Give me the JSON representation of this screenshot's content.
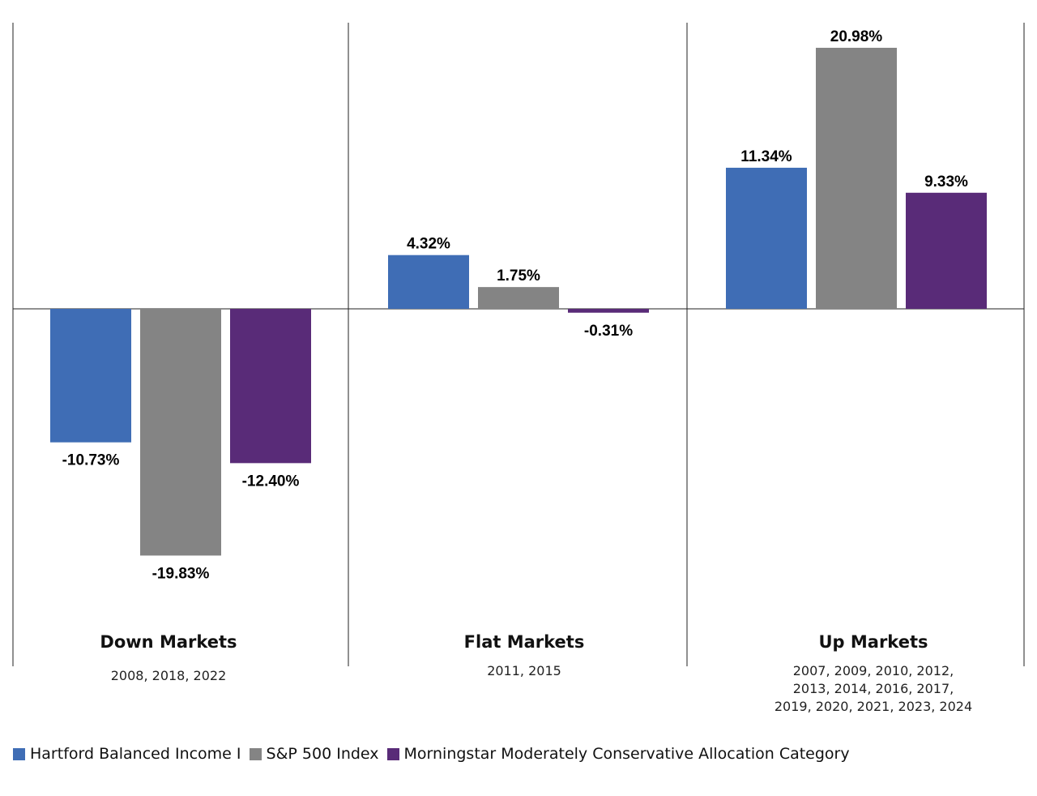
{
  "chart_data": {
    "type": "bar",
    "categories": [
      "Down Markets",
      "Flat Markets",
      "Up Markets"
    ],
    "category_years": [
      "2008, 2018, 2022",
      "2011, 2015",
      "2007, 2009, 2010, 2012,\n2013, 2014, 2016, 2017,\n2019, 2020, 2021, 2023, 2024"
    ],
    "series": [
      {
        "name": "Hartford Balanced Income I",
        "color": "#3f6db5",
        "values": [
          -10.73,
          4.32,
          11.34
        ],
        "labels": [
          "-10.73%",
          "4.32%",
          "11.34%"
        ]
      },
      {
        "name": "S&P 500 Index",
        "color": "#848484",
        "values": [
          -19.83,
          1.75,
          20.98
        ],
        "labels": [
          "-19.83%",
          "1.75%",
          "20.98%"
        ]
      },
      {
        "name": "Morningstar Moderately Conservative Allocation Category",
        "color": "#592b78",
        "values": [
          -12.4,
          -0.31,
          9.33
        ],
        "labels": [
          "-12.40%",
          "-0.31%",
          "9.33%"
        ]
      }
    ],
    "ylim": [
      -25,
      23
    ],
    "grid": false,
    "legend_position": "bottom-left"
  }
}
